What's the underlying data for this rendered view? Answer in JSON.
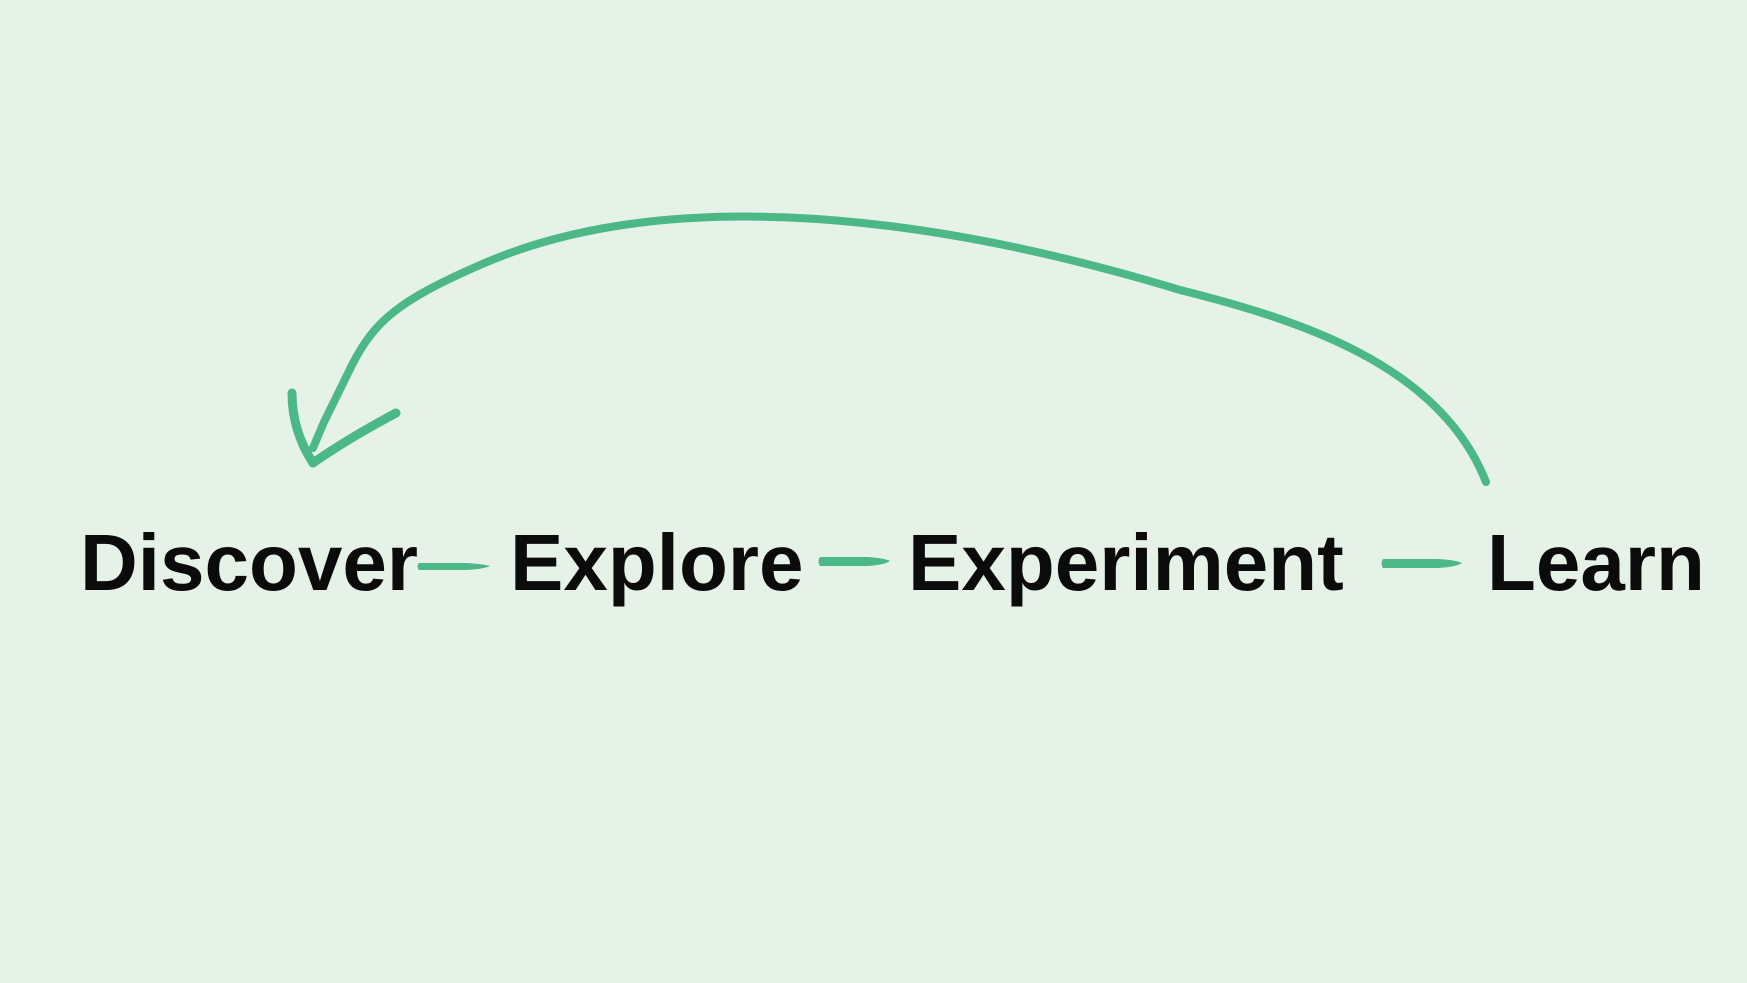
{
  "diagram": {
    "steps": [
      {
        "label": "Discover"
      },
      {
        "label": "Explore"
      },
      {
        "label": "Experiment"
      },
      {
        "label": "Learn"
      }
    ],
    "colors": {
      "background": "#e6f2e8",
      "arrow": "#4cb787",
      "text": "#0b0b0b"
    }
  }
}
